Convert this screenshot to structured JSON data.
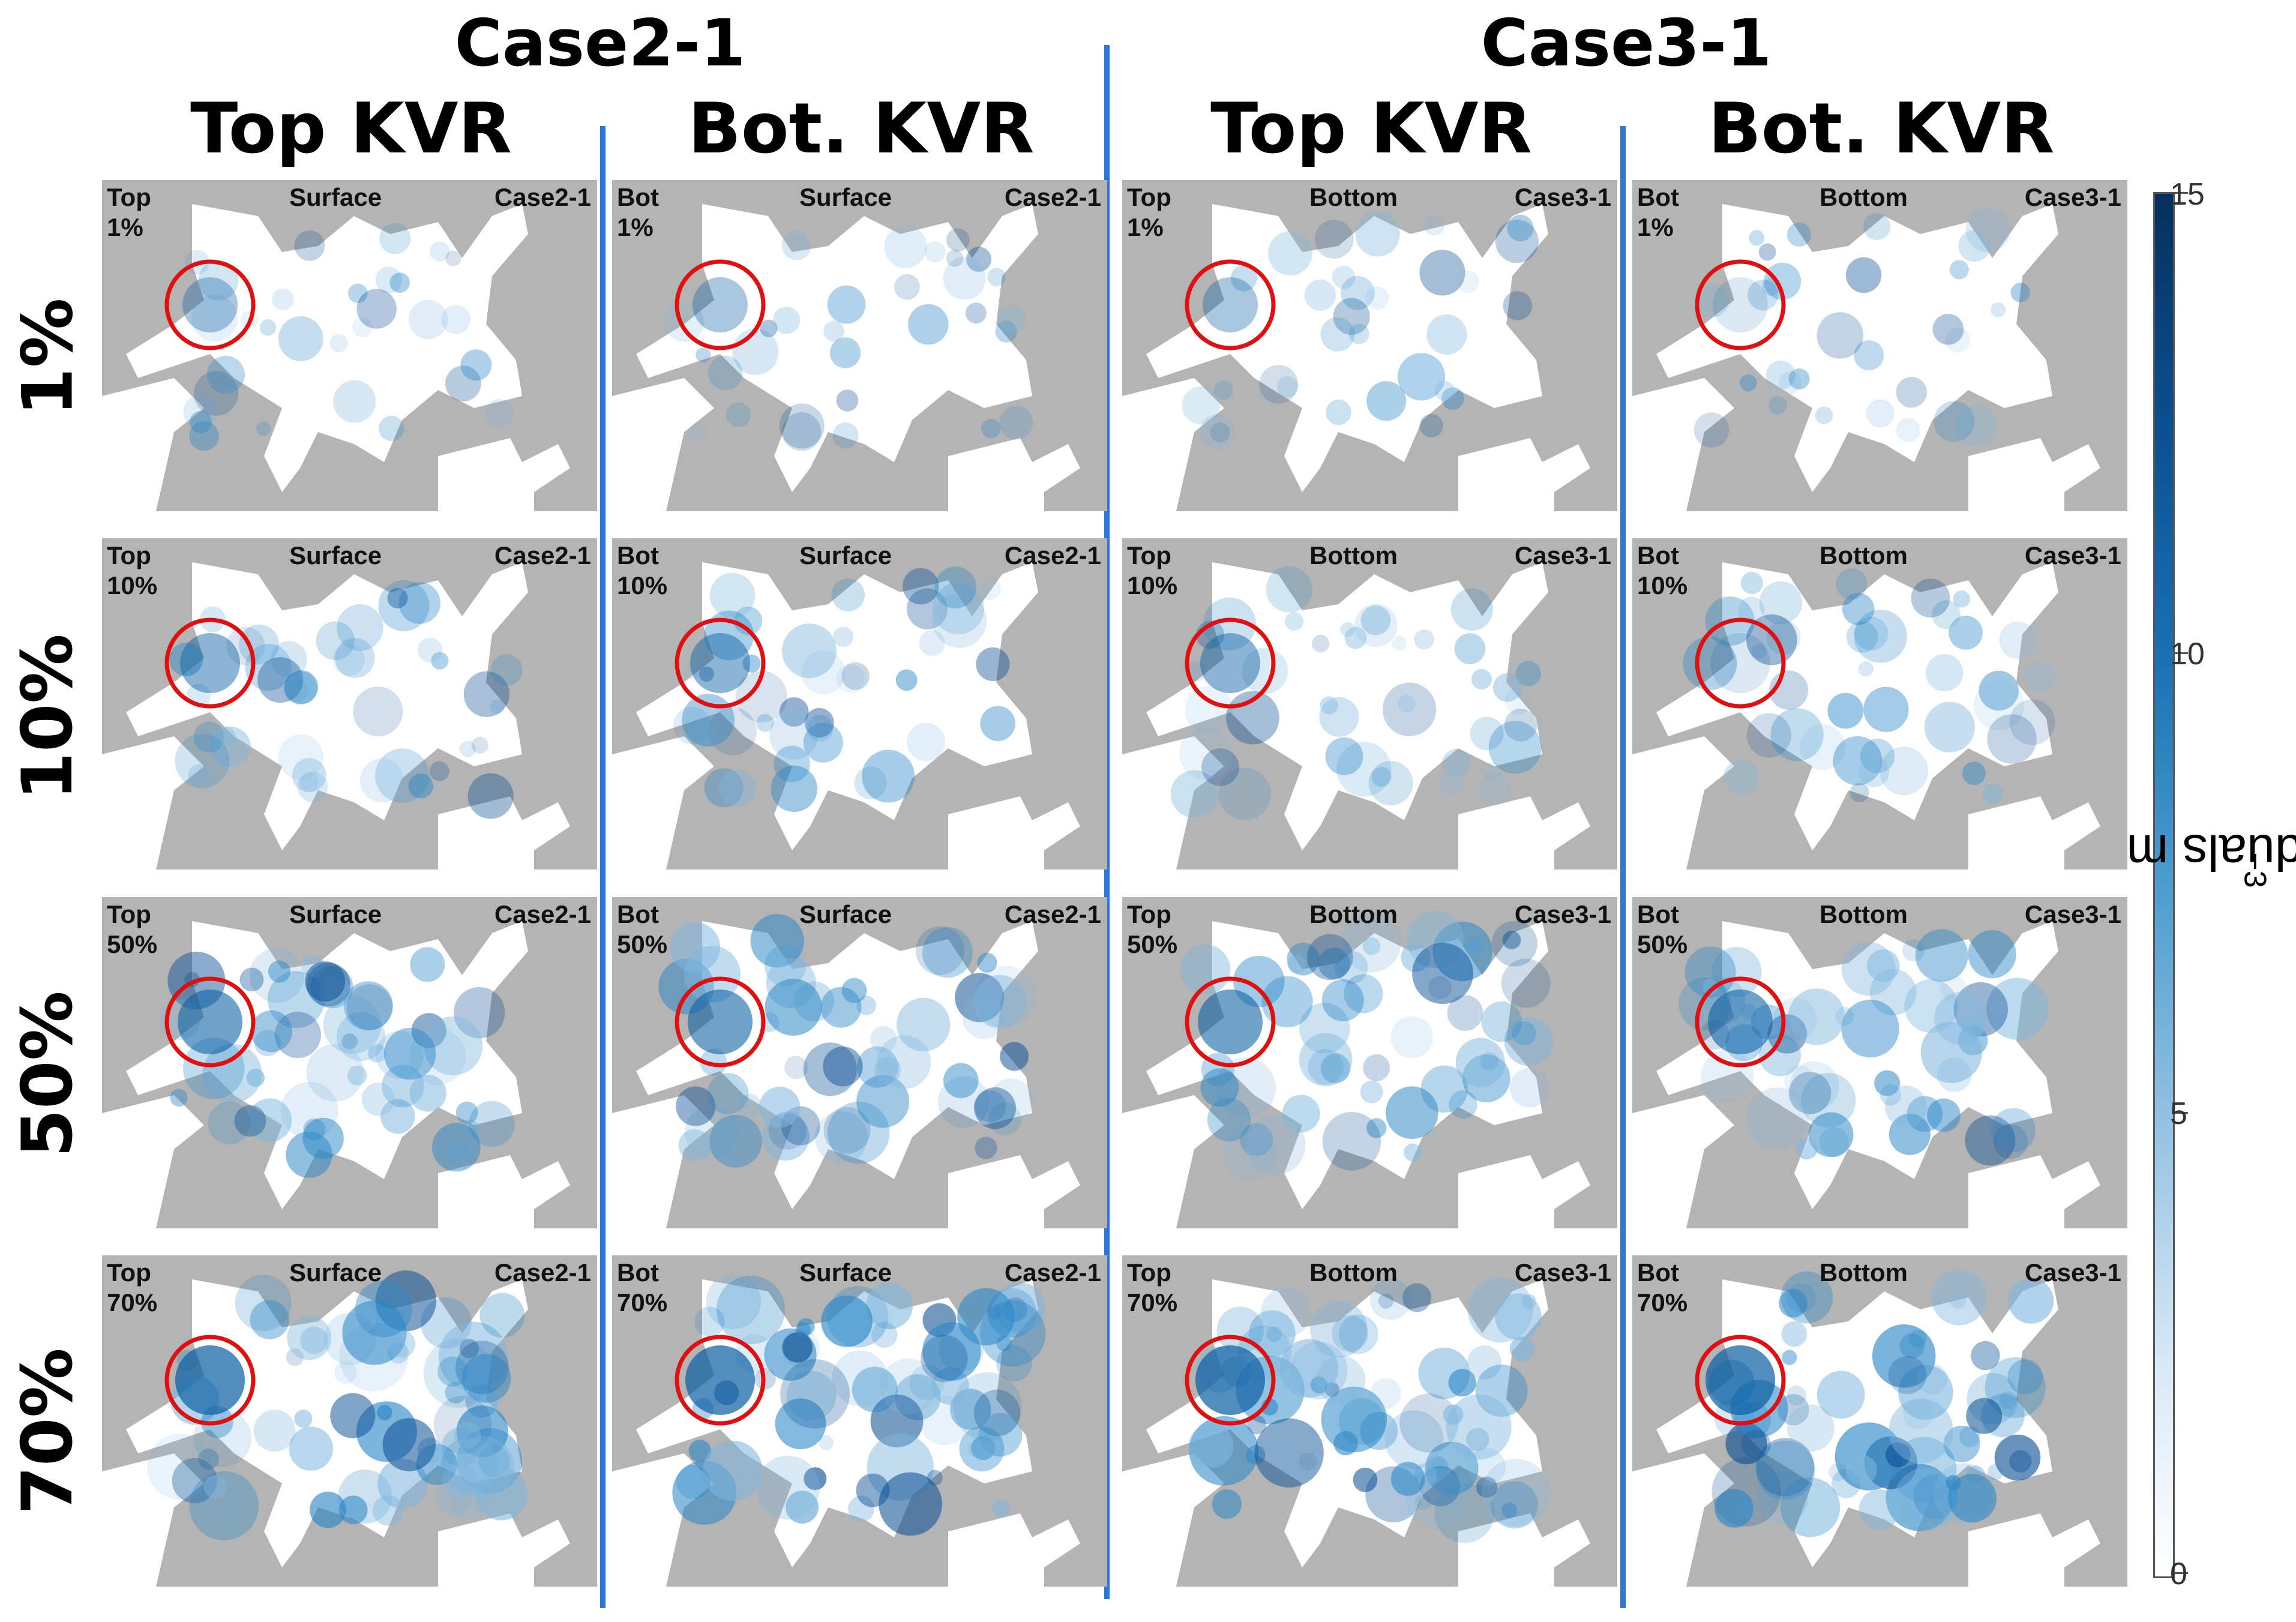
{
  "case_titles": [
    "Case2-1",
    "Case3-1"
  ],
  "column_titles": [
    "Top KVR",
    "Bot. KVR",
    "Top KVR",
    "Bot. KVR"
  ],
  "row_labels": [
    "1%",
    "10%",
    "50%",
    "70%"
  ],
  "columns": [
    {
      "layer": "Top",
      "depth": "Surface",
      "case": "Case2-1"
    },
    {
      "layer": "Bot",
      "depth": "Surface",
      "case": "Case2-1"
    },
    {
      "layer": "Top",
      "depth": "Bottom",
      "case": "Case3-1"
    },
    {
      "layer": "Bot",
      "depth": "Bottom",
      "case": "Case3-1"
    }
  ],
  "colorbar": {
    "label": "Individuals m",
    "label_exponent": "−3",
    "ticks": [
      "0",
      "5",
      "10",
      "15"
    ],
    "tick_values": [
      0,
      5,
      10,
      15
    ],
    "min": 0,
    "max": 15,
    "colors": [
      "#ffffff",
      "#93c1e2",
      "#1a72b4",
      "#06305c"
    ]
  },
  "colors": {
    "land": "#b4b4b4",
    "water": "#ffffff",
    "highlight_circle": "#e01010",
    "divider": "#2f76d2"
  }
}
